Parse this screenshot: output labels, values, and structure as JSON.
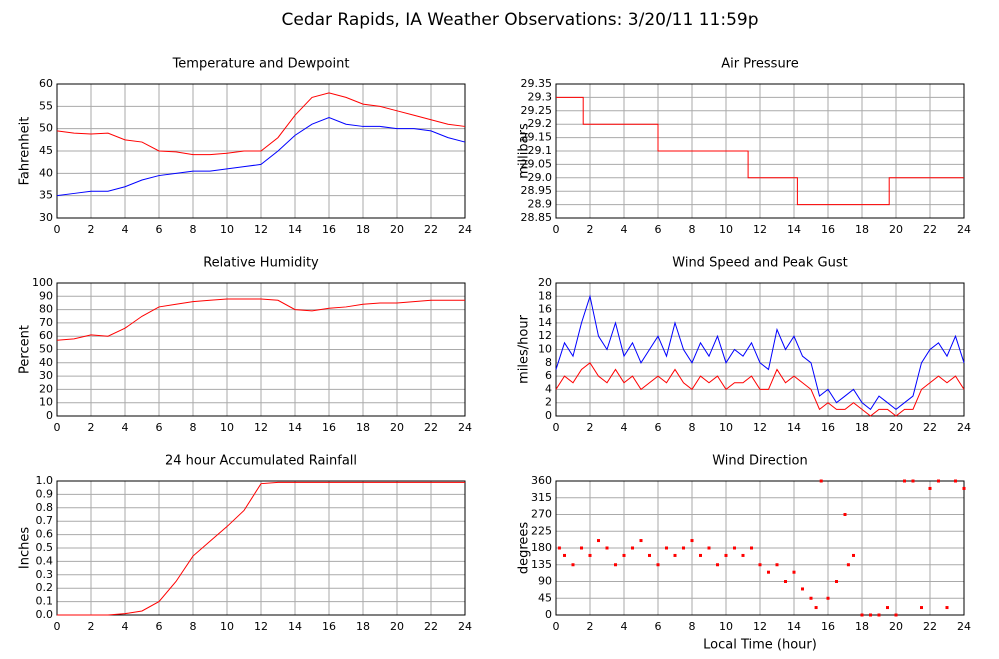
{
  "title": "Cedar Rapids, IA Weather Observations: 3/20/11 11:59p",
  "chart_data": [
    {
      "type": "line",
      "title": "Temperature and Dewpoint",
      "ylabel": "Fahrenheit",
      "x": [
        0,
        1,
        2,
        3,
        4,
        5,
        6,
        7,
        8,
        9,
        10,
        11,
        12,
        13,
        14,
        15,
        16,
        17,
        18,
        19,
        20,
        21,
        22,
        23,
        24
      ],
      "series": [
        {
          "color": "#ff0000",
          "values": [
            49.5,
            49,
            48.8,
            49,
            47.5,
            47,
            45,
            44.8,
            44.2,
            44.2,
            44.5,
            45,
            45,
            48,
            53,
            57,
            58,
            57,
            55.5,
            55,
            54,
            53,
            52,
            51,
            50.5
          ]
        },
        {
          "color": "#0000ff",
          "values": [
            35,
            35.5,
            36,
            36,
            37,
            38.5,
            39.5,
            40,
            40.5,
            40.5,
            41,
            41.5,
            42,
            45,
            48.5,
            51,
            52.5,
            51,
            50.5,
            50.5,
            50,
            50,
            49.5,
            48,
            47
          ]
        }
      ],
      "xlim": [
        0,
        24
      ],
      "xticks": [
        0,
        2,
        4,
        6,
        8,
        10,
        12,
        14,
        16,
        18,
        20,
        22,
        24
      ],
      "ylim": [
        30,
        60
      ],
      "yticks": [
        30,
        35,
        40,
        45,
        50,
        55,
        60
      ],
      "grid": true
    },
    {
      "type": "line",
      "title": "Air Pressure",
      "ylabel": "millibars",
      "x": [
        0,
        1.6,
        1.6,
        6,
        6,
        11.3,
        11.3,
        14.2,
        14.2,
        19.6,
        19.6,
        24
      ],
      "series": [
        {
          "color": "#ff0000",
          "values": [
            29.3,
            29.3,
            29.2,
            29.2,
            29.1,
            29.1,
            29.0,
            29.0,
            28.9,
            28.9,
            29.0,
            29.0
          ]
        }
      ],
      "xlim": [
        0,
        24
      ],
      "xticks": [
        0,
        2,
        4,
        6,
        8,
        10,
        12,
        14,
        16,
        18,
        20,
        22,
        24
      ],
      "ylim": [
        28.85,
        29.35
      ],
      "yticks": [
        28.85,
        28.9,
        28.95,
        {
          "value": 29,
          "label": "29.0"
        },
        29.05,
        29.1,
        29.15,
        29.2,
        29.25,
        29.3,
        29.35
      ],
      "grid": true
    },
    {
      "type": "line",
      "title": "Relative Humidity",
      "ylabel": "Percent",
      "x": [
        0,
        1,
        2,
        3,
        4,
        5,
        6,
        7,
        8,
        9,
        10,
        11,
        12,
        13,
        14,
        15,
        16,
        17,
        18,
        19,
        20,
        21,
        22,
        23,
        24
      ],
      "series": [
        {
          "color": "#ff0000",
          "values": [
            57,
            58,
            61,
            60,
            66,
            75,
            82,
            84,
            86,
            87,
            88,
            88,
            88,
            87,
            80,
            79,
            81,
            82,
            84,
            85,
            85,
            86,
            87,
            87,
            87
          ]
        }
      ],
      "xlim": [
        0,
        24
      ],
      "xticks": [
        0,
        2,
        4,
        6,
        8,
        10,
        12,
        14,
        16,
        18,
        20,
        22,
        24
      ],
      "ylim": [
        0,
        100
      ],
      "yticks": [
        0,
        10,
        20,
        30,
        40,
        50,
        60,
        70,
        80,
        90,
        100
      ],
      "grid": true
    },
    {
      "type": "line",
      "title": "Wind Speed and Peak Gust",
      "ylabel": "miles/hour",
      "x": [
        0,
        0.5,
        1,
        1.5,
        2,
        2.5,
        3,
        3.5,
        4,
        4.5,
        5,
        5.5,
        6,
        6.5,
        7,
        7.5,
        8,
        8.5,
        9,
        9.5,
        10,
        10.5,
        11,
        11.5,
        12,
        12.5,
        13,
        13.5,
        14,
        14.5,
        15,
        15.5,
        16,
        16.5,
        17,
        17.5,
        18,
        18.5,
        19,
        19.5,
        20,
        20.5,
        21,
        21.5,
        22,
        22.5,
        23,
        23.5,
        24
      ],
      "series": [
        {
          "color": "#0000ff",
          "values": [
            7,
            11,
            9,
            14,
            18,
            12,
            10,
            14,
            9,
            11,
            8,
            10,
            12,
            9,
            14,
            10,
            8,
            11,
            9,
            12,
            8,
            10,
            9,
            11,
            8,
            7,
            13,
            10,
            12,
            9,
            8,
            3,
            4,
            2,
            3,
            4,
            2,
            1,
            3,
            2,
            1,
            2,
            3,
            8,
            10,
            11,
            9,
            12,
            8
          ]
        },
        {
          "color": "#ff0000",
          "values": [
            4,
            6,
            5,
            7,
            8,
            6,
            5,
            7,
            5,
            6,
            4,
            5,
            6,
            5,
            7,
            5,
            4,
            6,
            5,
            6,
            4,
            5,
            5,
            6,
            4,
            4,
            7,
            5,
            6,
            5,
            4,
            1,
            2,
            1,
            1,
            2,
            1,
            0,
            1,
            1,
            0,
            1,
            1,
            4,
            5,
            6,
            5,
            6,
            4
          ]
        }
      ],
      "xlim": [
        0,
        24
      ],
      "xticks": [
        0,
        2,
        4,
        6,
        8,
        10,
        12,
        14,
        16,
        18,
        20,
        22,
        24
      ],
      "ylim": [
        0,
        20
      ],
      "yticks": [
        0,
        2,
        4,
        6,
        8,
        10,
        12,
        14,
        16,
        18,
        20
      ],
      "grid": true
    },
    {
      "type": "line",
      "title": "24 hour Accumulated Rainfall",
      "ylabel": "Inches",
      "x": [
        0,
        1,
        2,
        3,
        4,
        5,
        6,
        7,
        8,
        9,
        10,
        11,
        12,
        13,
        14,
        15,
        16,
        17,
        18,
        19,
        20,
        21,
        22,
        23,
        24
      ],
      "series": [
        {
          "color": "#ff0000",
          "values": [
            0,
            0,
            0,
            0,
            0.01,
            0.03,
            0.1,
            0.25,
            0.44,
            0.55,
            0.66,
            0.78,
            0.98,
            0.99,
            0.99,
            0.99,
            0.99,
            0.99,
            0.99,
            0.99,
            0.99,
            0.99,
            0.99,
            0.99,
            0.99
          ]
        }
      ],
      "xlim": [
        0,
        24
      ],
      "xticks": [
        0,
        2,
        4,
        6,
        8,
        10,
        12,
        14,
        16,
        18,
        20,
        22,
        24
      ],
      "ylim": [
        0,
        1
      ],
      "yticks": [
        {
          "value": 0,
          "label": "0.0"
        },
        0.1,
        0.2,
        0.3,
        0.4,
        0.5,
        0.6,
        0.7,
        0.8,
        0.9,
        {
          "value": 1,
          "label": "1.0"
        }
      ],
      "grid": true
    },
    {
      "type": "scatter",
      "title": "Wind Direction",
      "ylabel": "degrees",
      "xlabel": "Local Time (hour)",
      "color": "#ff0000",
      "x": [
        0.2,
        0.5,
        1,
        1.5,
        2,
        2.5,
        3,
        3.5,
        4,
        4.5,
        5,
        5.5,
        6,
        6.5,
        7,
        7.5,
        8,
        8.5,
        9,
        9.5,
        10,
        10.5,
        11,
        11.5,
        12,
        12.5,
        13,
        13.5,
        14,
        14.5,
        15,
        15.3,
        15.6,
        16,
        16.5,
        17,
        17.2,
        17.5,
        18,
        18.5,
        19,
        19.5,
        20,
        20.5,
        21,
        21.5,
        22,
        22.5,
        23,
        23.5,
        24
      ],
      "values": [
        180,
        160,
        135,
        180,
        160,
        200,
        180,
        135,
        160,
        180,
        200,
        160,
        135,
        180,
        160,
        180,
        200,
        160,
        180,
        135,
        160,
        180,
        160,
        180,
        135,
        115,
        135,
        90,
        115,
        70,
        45,
        20,
        360,
        45,
        90,
        270,
        135,
        160,
        0,
        0,
        0,
        20,
        0,
        360,
        360,
        20,
        340,
        360,
        20,
        360,
        340
      ],
      "xlim": [
        0,
        24
      ],
      "xticks": [
        0,
        2,
        4,
        6,
        8,
        10,
        12,
        14,
        16,
        18,
        20,
        22,
        24
      ],
      "ylim": [
        0,
        360
      ],
      "yticks": [
        0,
        45,
        90,
        135,
        180,
        225,
        270,
        315,
        360
      ],
      "grid": true
    }
  ]
}
